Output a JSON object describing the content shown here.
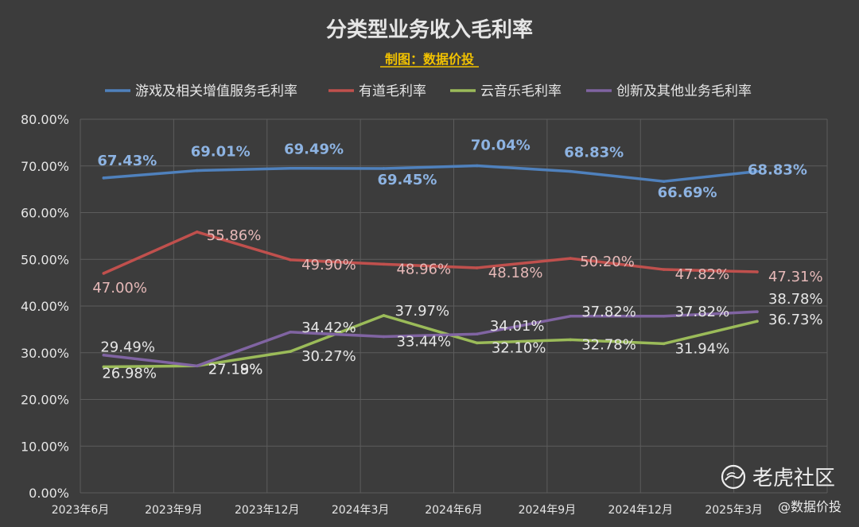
{
  "chart_data": {
    "type": "line",
    "title": "分类型业务收入毛利率",
    "subtitle": "制图：数据价投",
    "categories": [
      "2023年6月",
      "2023年9月",
      "2023年12月",
      "2024年3月",
      "2024年6月",
      "2024年9月",
      "2024年12月",
      "2025年3月"
    ],
    "ylim": [
      0,
      80
    ],
    "y_ticks": [
      "0.00%",
      "10.00%",
      "20.00%",
      "30.00%",
      "40.00%",
      "50.00%",
      "60.00%",
      "70.00%",
      "80.00%"
    ],
    "grid": true,
    "legend_position": "top",
    "series": [
      {
        "name": "游戏及相关增值服务毛利率",
        "color": "#4f81bd",
        "label_color": "#8db3e2",
        "bold_labels": true,
        "values": [
          67.43,
          69.01,
          69.49,
          69.45,
          70.04,
          68.83,
          66.69,
          68.83
        ],
        "labels": [
          "67.43%",
          "69.01%",
          "69.49%",
          "69.45%",
          "70.04%",
          "68.83%",
          "66.69%",
          "68.83%"
        ]
      },
      {
        "name": "有道毛利率",
        "color": "#c0504d",
        "label_color": "#e6b9b8",
        "bold_labels": false,
        "values": [
          47.0,
          55.86,
          49.9,
          48.96,
          48.18,
          50.2,
          47.82,
          47.31
        ],
        "labels": [
          "47.00%",
          "55.86%",
          "49.90%",
          "48.96%",
          "48.18%",
          "50.20%",
          "47.82%",
          "47.31%"
        ]
      },
      {
        "name": "云音乐毛利率",
        "color": "#9bbb59",
        "label_color": "#e6e6e6",
        "bold_labels": false,
        "values": [
          26.98,
          27.19,
          30.27,
          37.97,
          32.1,
          32.78,
          31.94,
          36.73
        ],
        "labels": [
          "26.98%",
          "27.19%",
          "30.27%",
          "37.97%",
          "32.10%",
          "32.78%",
          "31.94%",
          "36.73%"
        ]
      },
      {
        "name": "创新及其他业务毛利率",
        "color": "#8064a2",
        "label_color": "#e6e6e6",
        "bold_labels": false,
        "values": [
          29.49,
          27.18,
          34.42,
          33.44,
          34.01,
          37.82,
          37.82,
          38.78
        ],
        "labels": [
          "29.49%",
          "27.18%",
          "34.42%",
          "33.44%",
          "34.01%",
          "37.82%",
          "37.82%",
          "38.78%"
        ]
      }
    ]
  },
  "watermark": {
    "logo_icon": "tiger-logo-icon",
    "text": "老虎社区",
    "author": "@数据价投"
  }
}
